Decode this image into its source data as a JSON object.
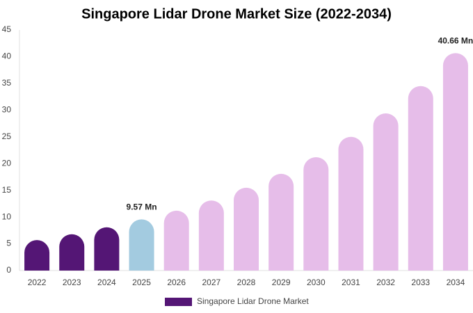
{
  "chart_data": {
    "type": "bar",
    "title": "Singapore Lidar Drone Market Size (2022-2034)",
    "categories": [
      "2022",
      "2023",
      "2024",
      "2025",
      "2026",
      "2027",
      "2028",
      "2029",
      "2030",
      "2031",
      "2032",
      "2033",
      "2034"
    ],
    "series": [
      {
        "name": "Singapore Lidar Drone Market",
        "color": "#541675",
        "values": [
          5.7,
          6.8,
          8.1,
          9.57,
          11.2,
          13.1,
          15.5,
          18.1,
          21.2,
          25.0,
          29.4,
          34.5,
          40.66
        ],
        "value_labels": [
          null,
          null,
          null,
          "9.57 Mn",
          null,
          null,
          null,
          null,
          null,
          null,
          null,
          null,
          "40.66 Mn"
        ],
        "colors": [
          "#541675",
          "#541675",
          "#541675",
          "#a3cbe0",
          "#e6bde9",
          "#e6bde9",
          "#e6bde9",
          "#e6bde9",
          "#e6bde9",
          "#e6bde9",
          "#e6bde9",
          "#e6bde9",
          "#e6bde9"
        ]
      }
    ],
    "ylim": [
      0,
      45
    ],
    "yticks": [
      0,
      5,
      10,
      15,
      20,
      25,
      30,
      35,
      40,
      45
    ],
    "grid": false
  }
}
